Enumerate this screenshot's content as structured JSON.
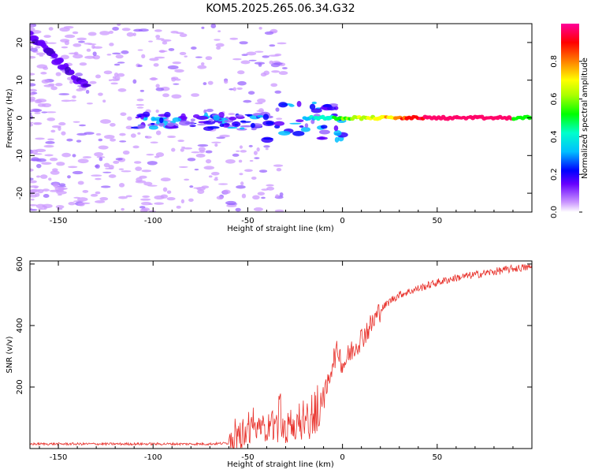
{
  "title": "KOM5.2025.265.06.34.G32",
  "chart_data": [
    {
      "type": "heatmap",
      "name": "spectrogram",
      "xlabel": "Height of straight line (km)",
      "ylabel": "Frequency (Hz)",
      "xlim": [
        -165,
        100
      ],
      "ylim": [
        -25,
        25
      ],
      "xticks": [
        -150,
        -100,
        -50,
        0,
        50
      ],
      "yticks": [
        -20,
        -10,
        0,
        10,
        20
      ],
      "colorbar": {
        "label": "Normalized spectral amplitude",
        "range": [
          0,
          1
        ],
        "ticks": [
          "0.0",
          "0.2",
          "0.4",
          "0.6",
          "0.8"
        ],
        "tick_values": [
          0,
          0.2,
          0.4,
          0.6,
          0.8
        ]
      },
      "features": {
        "main_trace": {
          "description": "strong narrow line",
          "x": [
            0,
            100
          ],
          "y": 0
        },
        "drift_trace": {
          "x": [
            -165,
            -135
          ],
          "y": [
            22,
            8
          ]
        }
      }
    },
    {
      "type": "line",
      "name": "snr",
      "xlabel": "Height of straight line (km)",
      "ylabel": "SNR (v/v)",
      "xlim": [
        -165,
        100
      ],
      "ylim": [
        0,
        610
      ],
      "xticks": [
        -150,
        -100,
        -50,
        0,
        50
      ],
      "yticks": [
        200,
        400,
        600
      ],
      "series": [
        {
          "name": "SNR",
          "color": "#e8302a",
          "x": [
            -165,
            -150,
            -100,
            -70,
            -60,
            -55,
            -50,
            -40,
            -30,
            -20,
            -15,
            -12,
            -8,
            -5,
            -2,
            0,
            5,
            10,
            15,
            20,
            25,
            30,
            40,
            50,
            60,
            70,
            80,
            90,
            100
          ],
          "y": [
            15,
            15,
            15,
            15,
            18,
            30,
            50,
            70,
            60,
            70,
            80,
            120,
            200,
            290,
            320,
            270,
            320,
            360,
            400,
            450,
            480,
            500,
            520,
            540,
            555,
            565,
            575,
            585,
            590
          ]
        }
      ]
    }
  ]
}
